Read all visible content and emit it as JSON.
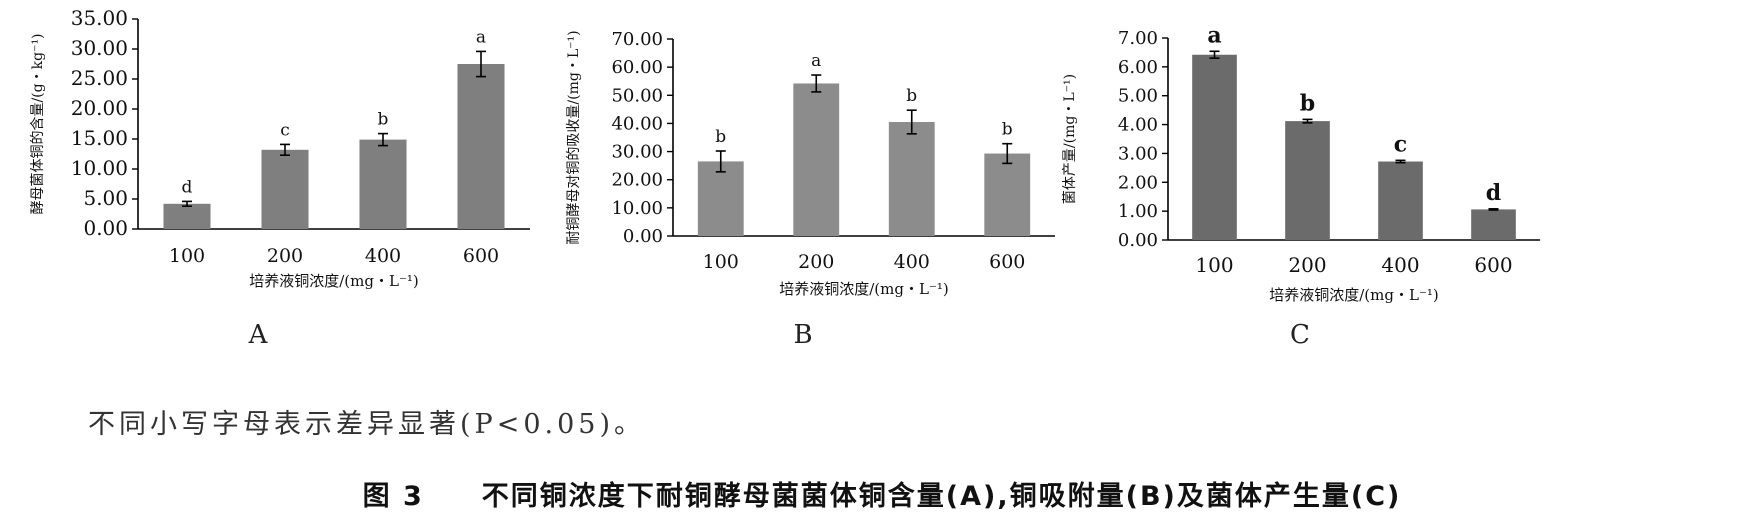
{
  "chart_data": [
    {
      "type": "bar",
      "panel_label": "A",
      "categories": [
        "100",
        "200",
        "400",
        "600"
      ],
      "values": [
        4.2,
        13.2,
        14.9,
        27.5
      ],
      "errors": [
        0.4,
        0.9,
        1.0,
        2.1
      ],
      "significance": [
        "d",
        "c",
        "b",
        "a"
      ],
      "ylabel": "酵母菌体铜的含量/(g・kg⁻¹)",
      "xlabel": "培养液铜浓度/(mg・L⁻¹)",
      "ylim": [
        0,
        35
      ],
      "yticks": [
        "0.00",
        "5.00",
        "10.00",
        "15.00",
        "20.00",
        "25.00",
        "30.00",
        "35.00"
      ],
      "bar_color": "#7f7f7f",
      "grid": false
    },
    {
      "type": "bar",
      "panel_label": "B",
      "categories": [
        "100",
        "200",
        "400",
        "600"
      ],
      "values": [
        26.5,
        54.2,
        40.5,
        29.3
      ],
      "errors": [
        3.7,
        3.0,
        4.2,
        3.5
      ],
      "significance": [
        "b",
        "a",
        "b",
        "b"
      ],
      "ylabel": "耐铜酵母对铜的吸收量/(mg・L⁻¹)",
      "xlabel": "培养液铜浓度/(mg・L⁻¹)",
      "ylim": [
        0,
        70
      ],
      "yticks": [
        "0.00",
        "10.00",
        "20.00",
        "30.00",
        "40.00",
        "50.00",
        "60.00",
        "70.00"
      ],
      "bar_color": "#8c8c8c",
      "grid": false
    },
    {
      "type": "bar",
      "panel_label": "C",
      "categories": [
        "100",
        "200",
        "400",
        "600"
      ],
      "values": [
        6.42,
        4.12,
        2.72,
        1.06
      ],
      "errors": [
        0.12,
        0.06,
        0.04,
        0.02
      ],
      "significance": [
        "a",
        "b",
        "c",
        "d"
      ],
      "ylabel": "菌体产量/(mg・L⁻¹)",
      "xlabel": "培养液铜浓度/(mg・L⁻¹)",
      "ylim": [
        0,
        7
      ],
      "yticks": [
        "0.00",
        "1.00",
        "2.00",
        "3.00",
        "4.00",
        "5.00",
        "6.00",
        "7.00"
      ],
      "bar_color": "#6b6b6b",
      "grid": false
    }
  ],
  "note": "不同小写字母表示差异显著(P<0.05)。",
  "caption": {
    "number": "图 3",
    "text": "不同铜浓度下耐铜酵母菌菌体铜含量(A),铜吸附量(B)及菌体产生量(C)"
  }
}
